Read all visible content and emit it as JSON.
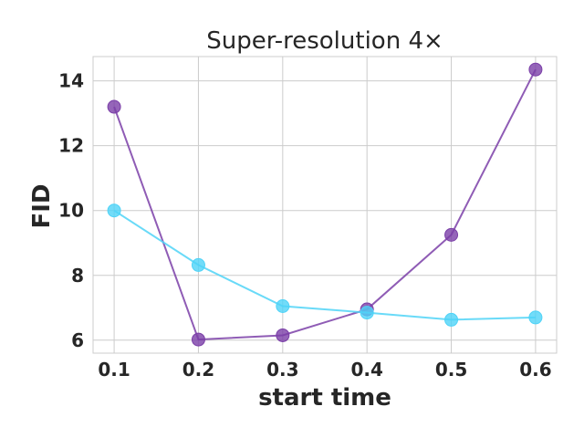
{
  "chart_data": {
    "type": "line",
    "title": "Super-resolution 4×",
    "xlabel": "start time",
    "ylabel": "FID",
    "x": [
      0.1,
      0.2,
      0.3,
      0.4,
      0.5,
      0.6
    ],
    "xticks": [
      "0.1",
      "0.2",
      "0.3",
      "0.4",
      "0.5",
      "0.6"
    ],
    "yticks": [
      "6",
      "8",
      "10",
      "12",
      "14"
    ],
    "xlim": [
      0.075,
      0.625
    ],
    "ylim": [
      5.6,
      14.75
    ],
    "grid": true,
    "series": [
      {
        "color": "#7b3fa8",
        "values": [
          13.2,
          6.02,
          6.15,
          6.95,
          9.25,
          14.35
        ]
      },
      {
        "color": "#4fd3f7",
        "values": [
          10.0,
          8.32,
          7.05,
          6.85,
          6.63,
          6.7
        ]
      }
    ]
  }
}
